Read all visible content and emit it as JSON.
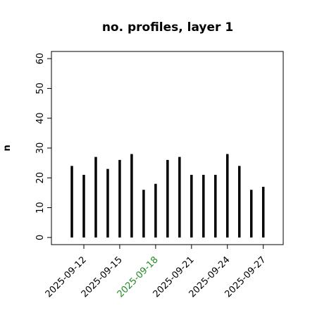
{
  "chart_data": {
    "type": "bar_h",
    "title": "no. profiles, layer 1",
    "ylabel": "n",
    "x": [
      "2025-09-11",
      "2025-09-12",
      "2025-09-13",
      "2025-09-14",
      "2025-09-15",
      "2025-09-16",
      "2025-09-17",
      "2025-09-18",
      "2025-09-19",
      "2025-09-20",
      "2025-09-21",
      "2025-09-22",
      "2025-09-23",
      "2025-09-24",
      "2025-09-25",
      "2025-09-26",
      "2025-09-27"
    ],
    "values": [
      24,
      21,
      27,
      23,
      26,
      28,
      16,
      18,
      26,
      27,
      21,
      21,
      21,
      28,
      24,
      16,
      17
    ],
    "color": "#000000",
    "xlim": [
      "2025-09-09T07:00Z",
      "2025-09-28T16:00Z"
    ],
    "xticks": [
      "2025-09-12",
      "2025-09-15",
      "2025-09-18",
      "2025-09-21",
      "2025-09-24",
      "2025-09-27"
    ],
    "xtick_colors": [
      "#000000",
      "#000000",
      "#228b22",
      "#000000",
      "#000000",
      "#000000"
    ],
    "ylim": [
      -2.4,
      62.4
    ],
    "yticks": [
      0,
      10,
      20,
      30,
      40,
      50,
      60
    ]
  }
}
